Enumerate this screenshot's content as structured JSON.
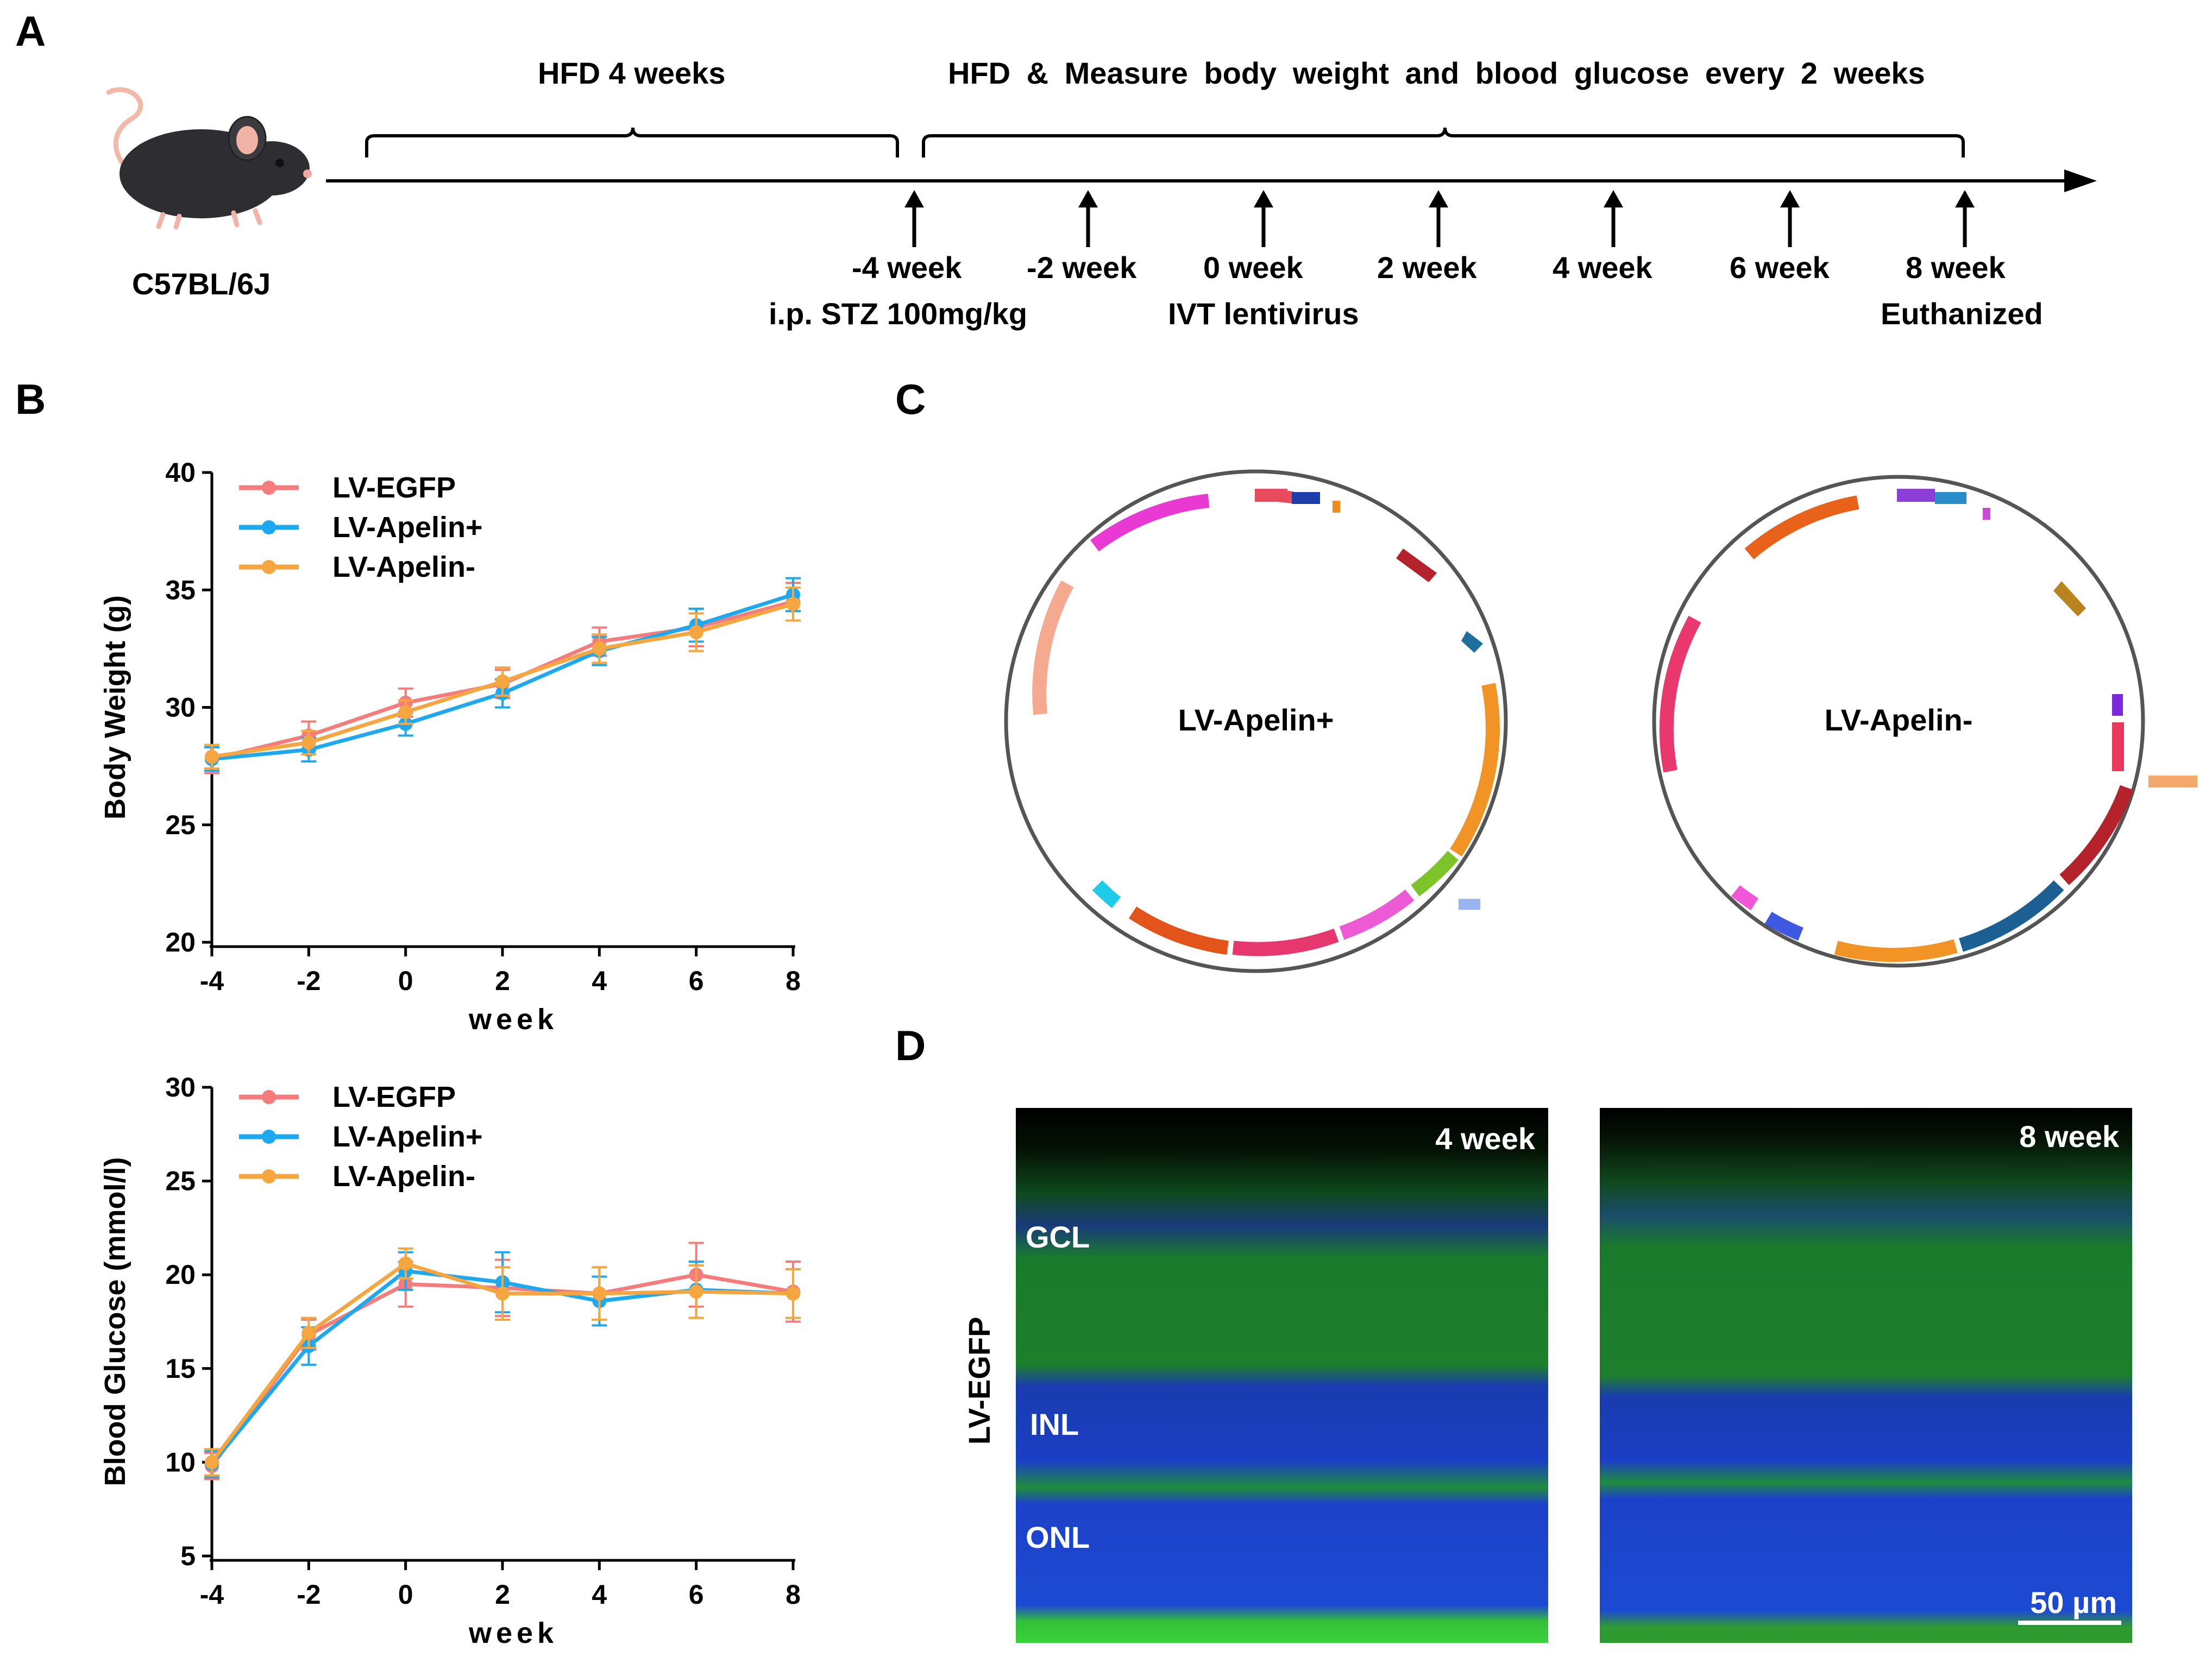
{
  "panels": {
    "A": "A",
    "B": "B",
    "C": "C",
    "D": "D"
  },
  "timeline": {
    "mouse_label": "C57BL/6J",
    "bracket1_label": "HFD 4 weeks",
    "bracket2_label": "HFD & Measure body weight and blood glucose every 2 weeks",
    "events": [
      {
        "week": "-4 week",
        "note": "i.p. STZ 100mg/kg"
      },
      {
        "week": "-2 week",
        "note": ""
      },
      {
        "week": "0 week",
        "note": "IVT lentivirus"
      },
      {
        "week": "2 week",
        "note": ""
      },
      {
        "week": "4 week",
        "note": ""
      },
      {
        "week": "6 week",
        "note": ""
      },
      {
        "week": "8 week",
        "note": "Euthanized"
      }
    ]
  },
  "chart_data": [
    {
      "type": "line",
      "title": "",
      "xlabel": "week",
      "ylabel": "Body Weight (g)",
      "x": [
        -4,
        -2,
        0,
        2,
        4,
        6,
        8
      ],
      "xticks": [
        "-4",
        "-2",
        "0",
        "2",
        "4",
        "6",
        "8"
      ],
      "yticks": [
        "20",
        "25",
        "30",
        "35",
        "40"
      ],
      "ylim": [
        20,
        40
      ],
      "xlim": [
        -4,
        8
      ],
      "legend_position": "top-left",
      "series": [
        {
          "name": "LV-EGFP",
          "color": "#f47c7c",
          "values": [
            27.8,
            28.8,
            30.2,
            31.0,
            32.8,
            33.4,
            34.5
          ],
          "err": [
            0.6,
            0.6,
            0.6,
            0.6,
            0.6,
            0.8,
            0.8
          ]
        },
        {
          "name": "LV-Apelin+",
          "color": "#1ea8f0",
          "values": [
            27.8,
            28.2,
            29.3,
            30.6,
            32.4,
            33.5,
            34.8
          ],
          "err": [
            0.5,
            0.5,
            0.5,
            0.6,
            0.6,
            0.7,
            0.7
          ]
        },
        {
          "name": "LV-Apelin-",
          "color": "#f5a640",
          "values": [
            27.9,
            28.5,
            29.8,
            31.1,
            32.5,
            33.2,
            34.4
          ],
          "err": [
            0.5,
            0.5,
            0.5,
            0.6,
            0.6,
            0.8,
            0.7
          ]
        }
      ]
    },
    {
      "type": "line",
      "title": "",
      "xlabel": "week",
      "ylabel": "Blood Glucose (mmol/l)",
      "x": [
        -4,
        -2,
        0,
        2,
        4,
        6,
        8
      ],
      "xticks": [
        "-4",
        "-2",
        "0",
        "2",
        "4",
        "6",
        "8"
      ],
      "yticks": [
        "5",
        "10",
        "15",
        "20",
        "25",
        "30"
      ],
      "ylim": [
        5,
        30
      ],
      "xlim": [
        -4,
        8
      ],
      "legend_position": "top-left",
      "series": [
        {
          "name": "LV-EGFP",
          "color": "#f47c7c",
          "values": [
            9.8,
            16.8,
            19.5,
            19.3,
            19.0,
            20.0,
            19.1
          ],
          "err": [
            0.7,
            0.8,
            1.2,
            1.5,
            1.4,
            1.7,
            1.6
          ]
        },
        {
          "name": "LV-Apelin+",
          "color": "#1ea8f0",
          "values": [
            9.9,
            16.2,
            20.2,
            19.6,
            18.6,
            19.2,
            19.0
          ],
          "err": [
            0.7,
            1.0,
            1.0,
            1.6,
            1.3,
            1.5,
            1.3
          ]
        },
        {
          "name": "LV-Apelin-",
          "color": "#f5a640",
          "values": [
            10.0,
            16.9,
            20.6,
            19.0,
            19.0,
            19.1,
            19.0
          ],
          "err": [
            0.7,
            0.8,
            0.8,
            1.4,
            1.4,
            1.4,
            1.3
          ]
        }
      ]
    }
  ],
  "plasmids": [
    {
      "name": "LV-Apelin+"
    },
    {
      "name": "LV-Apelin-"
    }
  ],
  "micrographs": {
    "row_label": "LV-EGFP",
    "left_time": "4 week",
    "right_time": "8 week",
    "layers": [
      "GCL",
      "INL",
      "ONL"
    ],
    "scale_bar": "50 µm"
  }
}
